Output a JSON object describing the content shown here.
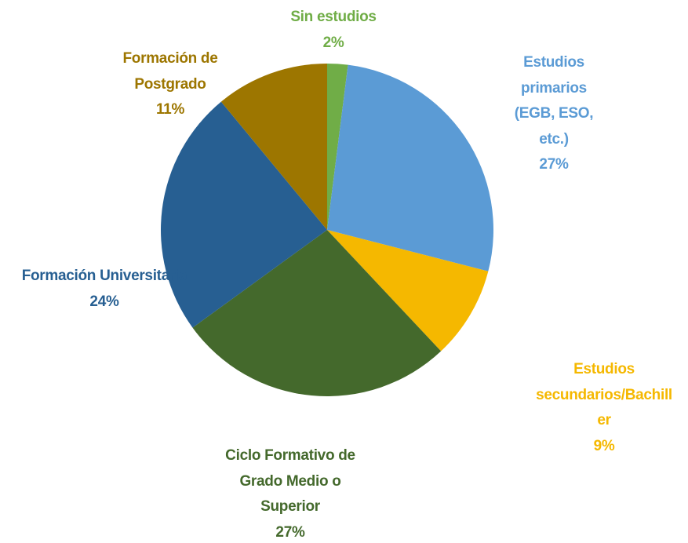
{
  "chart_data": {
    "type": "pie",
    "categories": [
      "Sin estudios",
      "Estudios primarios (EGB, ESO, etc.)",
      "Estudios secundarios/Bachiller",
      "Ciclo Formativo de Grado Medio o Superior",
      "Formación Universitaria",
      "Formación de Postgrado"
    ],
    "values": [
      2,
      27,
      9,
      27,
      24,
      11
    ],
    "value_labels": [
      "2%",
      "27%",
      "9%",
      "27%",
      "24%",
      "11%"
    ],
    "colors": [
      "#70ad47",
      "#5b9bd5",
      "#f5b800",
      "#44692c",
      "#275f92",
      "#9d7600"
    ]
  }
}
